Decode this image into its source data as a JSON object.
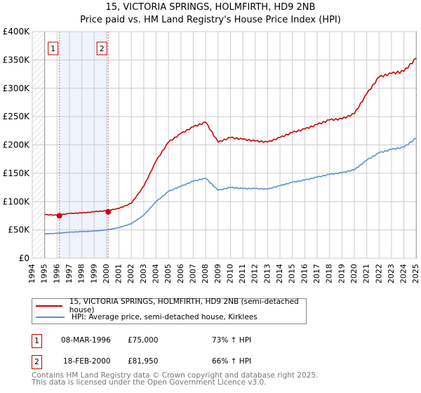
{
  "header": {
    "title": "15, VICTORIA SPRINGS, HOLMFIRTH, HD9 2NB",
    "subtitle": "Price paid vs. HM Land Registry's House Price Index (HPI)"
  },
  "colors": {
    "property": "#cc0000",
    "hpi": "#5b8fd0",
    "shade": "#eef3fc",
    "marker_line": "#e06070",
    "grid": "#cccccc"
  },
  "chart_data": {
    "type": "line",
    "title": "15, VICTORIA SPRINGS, HOLMFIRTH, HD9 2NB",
    "subtitle": "Price paid vs. HM Land Registry's House Price Index (HPI)",
    "xlabel": "",
    "ylabel": "",
    "xlim": [
      1994,
      2025.1
    ],
    "ylim": [
      0,
      400000
    ],
    "grid": true,
    "x_ticks": [
      "1994",
      "1995",
      "1996",
      "1997",
      "1998",
      "1999",
      "2000",
      "2001",
      "2002",
      "2003",
      "2004",
      "2005",
      "2006",
      "2007",
      "2008",
      "2009",
      "2010",
      "2011",
      "2012",
      "2013",
      "2014",
      "2015",
      "2016",
      "2017",
      "2018",
      "2019",
      "2020",
      "2021",
      "2022",
      "2023",
      "2024",
      "2025"
    ],
    "y_ticks": [
      {
        "value": 0,
        "label": "£0"
      },
      {
        "value": 50000,
        "label": "£50K"
      },
      {
        "value": 100000,
        "label": "£100K"
      },
      {
        "value": 150000,
        "label": "£150K"
      },
      {
        "value": 200000,
        "label": "£200K"
      },
      {
        "value": 250000,
        "label": "£250K"
      },
      {
        "value": 300000,
        "label": "£300K"
      },
      {
        "value": 350000,
        "label": "£350K"
      },
      {
        "value": 400000,
        "label": "£400K"
      }
    ],
    "hatched_regions": [
      [
        1994,
        1995
      ],
      [
        2025,
        2025.1
      ]
    ],
    "shaded_region": [
      1996.19,
      2000.13
    ],
    "x": [
      1995,
      1996,
      1997,
      1998,
      1999,
      2000,
      2001,
      2002,
      2003,
      2004,
      2005,
      2006,
      2007,
      2008,
      2009,
      2010,
      2011,
      2012,
      2013,
      2014,
      2015,
      2016,
      2017,
      2018,
      2019,
      2020,
      2021,
      2022,
      2023,
      2024,
      2025
    ],
    "series": [
      {
        "name": "15, VICTORIA SPRINGS, HOLMFIRTH, HD9 2NB (semi-detached house)",
        "color": "#cc0000",
        "values": [
          77000,
          76000,
          79000,
          80000,
          82000,
          84000,
          88000,
          97000,
          127000,
          172000,
          205000,
          220000,
          232000,
          240000,
          205000,
          213000,
          210000,
          207000,
          205000,
          213000,
          222000,
          228000,
          236000,
          244000,
          246000,
          255000,
          290000,
          320000,
          326000,
          330000,
          353000
        ]
      },
      {
        "name": "HPI: Average price, semi-detached house, Kirklees",
        "color": "#5b8fd0",
        "values": [
          43000,
          44000,
          46000,
          47000,
          48000,
          50000,
          54000,
          61000,
          76000,
          100000,
          118000,
          127000,
          136000,
          141000,
          120000,
          125000,
          123000,
          123000,
          122000,
          128000,
          134000,
          138000,
          143000,
          148000,
          151000,
          156000,
          173000,
          186000,
          192000,
          196000,
          212000
        ]
      }
    ],
    "annotations": [
      {
        "label": "1",
        "x": 1996.19,
        "y": 75000
      },
      {
        "label": "2",
        "x": 2000.13,
        "y": 81950
      }
    ],
    "legend_position": "below"
  },
  "legend": {
    "property_label": "15, VICTORIA SPRINGS, HOLMFIRTH, HD9 2NB (semi-detached house)",
    "hpi_label": "HPI: Average price, semi-detached house, Kirklees"
  },
  "sales": [
    {
      "num": "1",
      "date": "08-MAR-1996",
      "price": "£75,000",
      "hpi": "73% ↑ HPI"
    },
    {
      "num": "2",
      "date": "18-FEB-2000",
      "price": "£81,950",
      "hpi": "66% ↑ HPI"
    }
  ],
  "footer": {
    "line1": "Contains HM Land Registry data © Crown copyright and database right 2025.",
    "line2": "This data is licensed under the Open Government Licence v3.0."
  }
}
